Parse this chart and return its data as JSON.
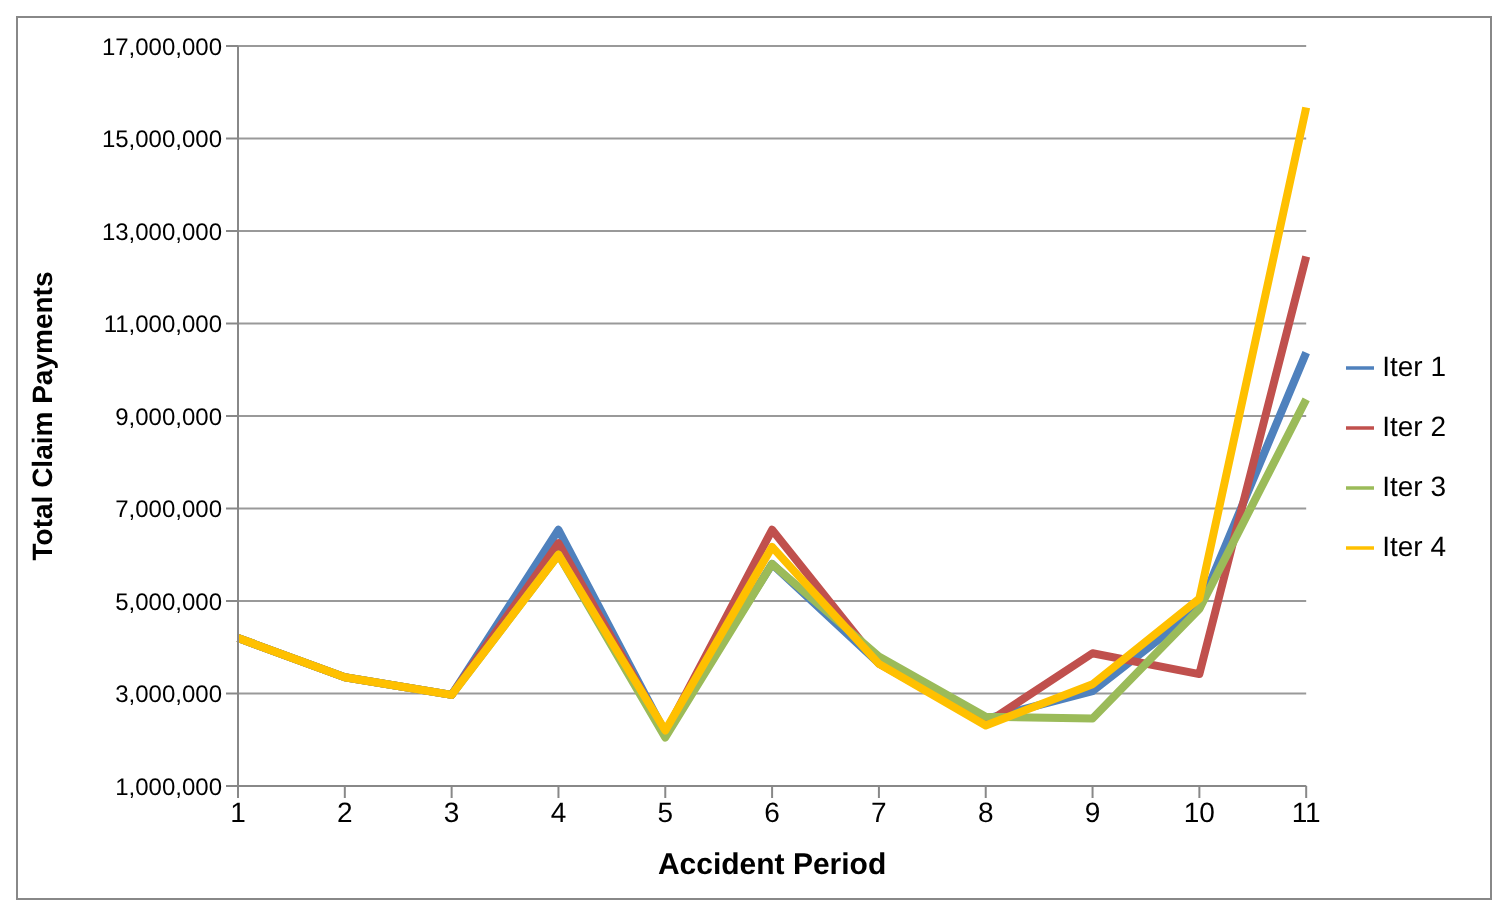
{
  "chart_data": {
    "type": "line",
    "xlabel": "Accident Period",
    "ylabel": "Total Claim Payments",
    "categories": [
      "1",
      "2",
      "3",
      "4",
      "5",
      "6",
      "7",
      "8",
      "9",
      "10",
      "11"
    ],
    "series": [
      {
        "name": "Iter 1",
        "color": "#4f81bd",
        "values": [
          4200000,
          3350000,
          2970000,
          6540000,
          2150000,
          5800000,
          3650000,
          2450000,
          3050000,
          4850000,
          10370000
        ]
      },
      {
        "name": "Iter 2",
        "color": "#c0504d",
        "values": [
          4200000,
          3350000,
          2970000,
          6250000,
          2150000,
          6540000,
          3650000,
          2350000,
          3870000,
          3420000,
          12450000
        ]
      },
      {
        "name": "Iter 3",
        "color": "#9bbb59",
        "values": [
          4200000,
          3350000,
          2970000,
          6000000,
          2050000,
          5800000,
          3800000,
          2500000,
          2460000,
          4830000,
          9360000
        ]
      },
      {
        "name": "Iter 4",
        "color": "#ffc000",
        "values": [
          4200000,
          3350000,
          2970000,
          6000000,
          2200000,
          6170000,
          3640000,
          2310000,
          3200000,
          5050000,
          15670000
        ]
      }
    ],
    "ylim": [
      1000000,
      17000000
    ],
    "yticks": [
      {
        "value": 1000000,
        "label": "1,000,000"
      },
      {
        "value": 3000000,
        "label": "3,000,000"
      },
      {
        "value": 5000000,
        "label": "5,000,000"
      },
      {
        "value": 7000000,
        "label": "7,000,000"
      },
      {
        "value": 9000000,
        "label": "9,000,000"
      },
      {
        "value": 11000000,
        "label": "11,000,000"
      },
      {
        "value": 13000000,
        "label": "13,000,000"
      },
      {
        "value": 15000000,
        "label": "15,000,000"
      },
      {
        "value": 17000000,
        "label": "17,000,000"
      }
    ],
    "grid": "y",
    "legend": "right",
    "marker": "none",
    "line_style": "solid"
  }
}
